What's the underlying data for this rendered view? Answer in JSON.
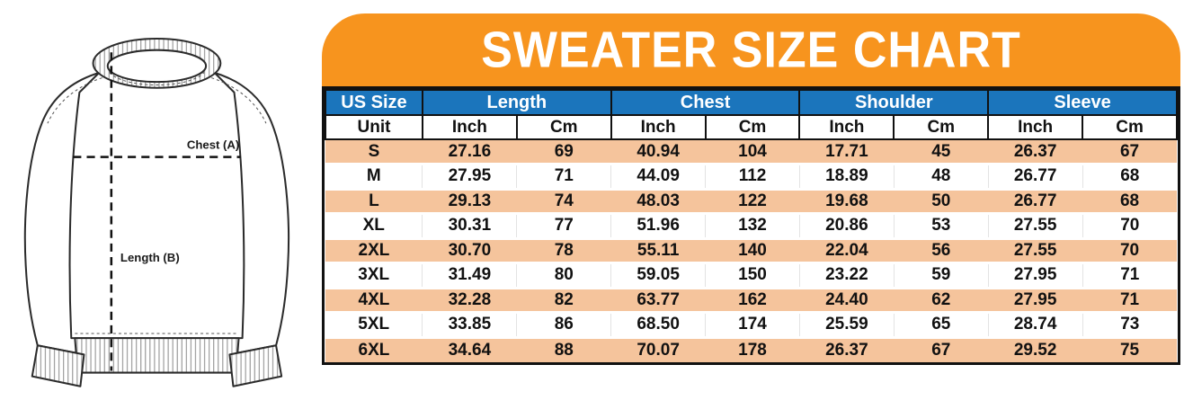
{
  "chart_data": {
    "type": "table",
    "title": "SWEATER SIZE CHART",
    "size_column_header": "US Size",
    "unit_label": "Unit",
    "groups": [
      "Length",
      "Chest",
      "Shoulder",
      "Sleeve"
    ],
    "unit_row": [
      "Inch",
      "Cm",
      "Inch",
      "Cm",
      "Inch",
      "Cm",
      "Inch",
      "Cm"
    ],
    "columns": [
      "US Size",
      "Length Inch",
      "Length Cm",
      "Chest Inch",
      "Chest Cm",
      "Shoulder Inch",
      "Shoulder Cm",
      "Sleeve Inch",
      "Sleeve Cm"
    ],
    "rows": [
      {
        "size": "S",
        "values": [
          "27.16",
          "69",
          "40.94",
          "104",
          "17.71",
          "45",
          "26.37",
          "67"
        ]
      },
      {
        "size": "M",
        "values": [
          "27.95",
          "71",
          "44.09",
          "112",
          "18.89",
          "48",
          "26.77",
          "68"
        ]
      },
      {
        "size": "L",
        "values": [
          "29.13",
          "74",
          "48.03",
          "122",
          "19.68",
          "50",
          "26.77",
          "68"
        ]
      },
      {
        "size": "XL",
        "values": [
          "30.31",
          "77",
          "51.96",
          "132",
          "20.86",
          "53",
          "27.55",
          "70"
        ]
      },
      {
        "size": "2XL",
        "values": [
          "30.70",
          "78",
          "55.11",
          "140",
          "22.04",
          "56",
          "27.55",
          "70"
        ]
      },
      {
        "size": "3XL",
        "values": [
          "31.49",
          "80",
          "59.05",
          "150",
          "23.22",
          "59",
          "27.95",
          "71"
        ]
      },
      {
        "size": "4XL",
        "values": [
          "32.28",
          "82",
          "63.77",
          "162",
          "24.40",
          "62",
          "27.95",
          "71"
        ]
      },
      {
        "size": "5XL",
        "values": [
          "33.85",
          "86",
          "68.50",
          "174",
          "25.59",
          "65",
          "28.74",
          "73"
        ]
      },
      {
        "size": "6XL",
        "values": [
          "34.64",
          "88",
          "70.07",
          "178",
          "26.37",
          "67",
          "29.52",
          "75"
        ]
      }
    ]
  },
  "illustration": {
    "chest_label": "Chest (A)",
    "length_label": "Length (B)"
  },
  "colors": {
    "banner_orange": "#F7941E",
    "header_blue": "#1B75BC",
    "row_peach": "#F5C49C",
    "row_white": "#FFFFFF",
    "border_black": "#111111"
  }
}
